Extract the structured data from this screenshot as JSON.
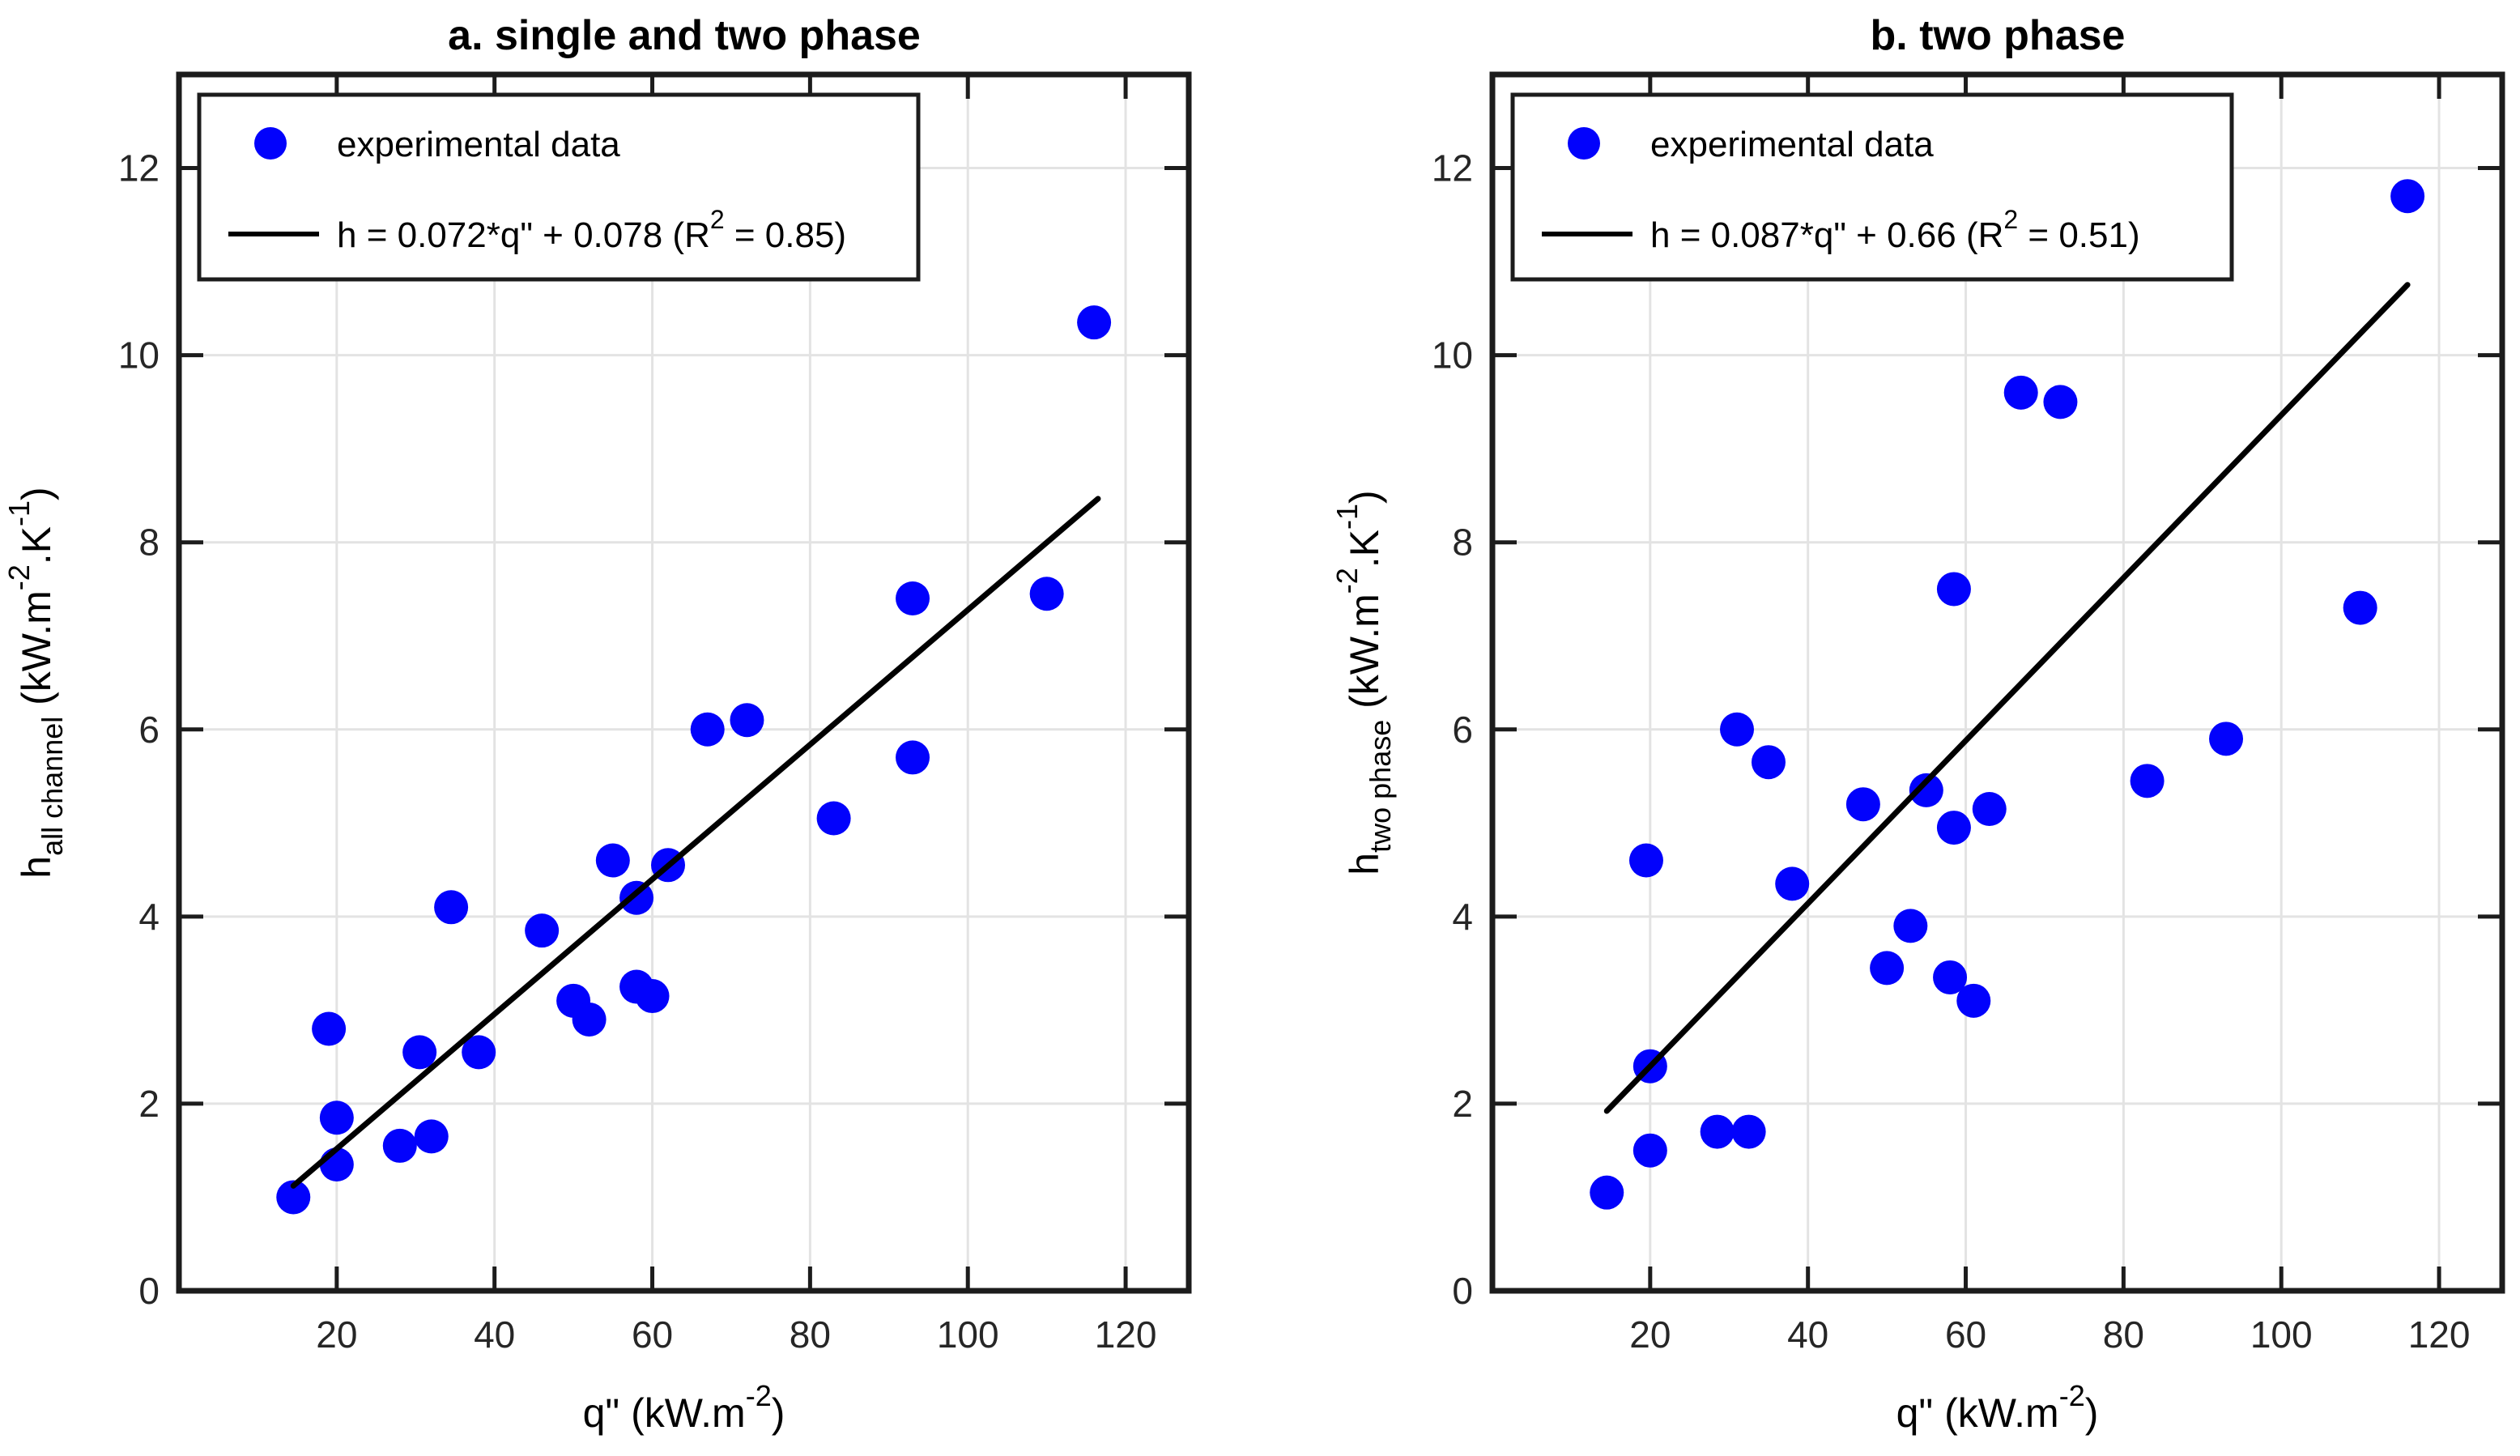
{
  "styles": {
    "background": "#FFFFFF",
    "marker_color": "#0202FC",
    "fit_line_color": "#000000",
    "grid_color": "#E3E3E3",
    "axis_color": "#1C1C1C",
    "tick_label_color": "#262626",
    "legend_border_color": "#1C1C1C",
    "legend_background": "#FFFFFF"
  },
  "chart_data": [
    {
      "type": "scatter",
      "panel": "a",
      "title": "a. single and two phase",
      "xlim": [
        0,
        128
      ],
      "ylim": [
        0,
        13
      ],
      "xticks": [
        20,
        40,
        60,
        80,
        100,
        120
      ],
      "yticks": [
        0,
        2,
        4,
        6,
        8,
        10,
        12
      ],
      "grid": true,
      "legend_position": "top-left",
      "xlabel_parts": [
        {
          "t": "q\" (kW.m"
        },
        {
          "t": "-2",
          "s": "sup"
        },
        {
          "t": ")"
        }
      ],
      "ylabel_parts": [
        {
          "t": "h"
        },
        {
          "t": "all channel",
          "s": "sub"
        },
        {
          "t": " (kW.m"
        },
        {
          "t": "-2",
          "s": "sup"
        },
        {
          "t": ".K"
        },
        {
          "t": "-1",
          "s": "sup"
        },
        {
          "t": ")"
        }
      ],
      "legend": [
        {
          "swatch": "dot",
          "parts": [
            {
              "t": "experimental data"
            }
          ]
        },
        {
          "swatch": "line",
          "parts": [
            {
              "t": "h = 0.072*q\" + 0.078 (R"
            },
            {
              "t": "2",
              "s": "sup"
            },
            {
              "t": " = 0.85)"
            }
          ]
        }
      ],
      "fit": {
        "equation": "h = 0.072*q\" + 0.078",
        "slope": 0.072,
        "intercept": 0.078,
        "r2": 0.85,
        "x_start": 14.5,
        "x_end": 116.5
      },
      "points": [
        [
          14.5,
          1.0
        ],
        [
          20,
          1.35
        ],
        [
          20,
          1.85
        ],
        [
          19,
          2.8
        ],
        [
          28,
          1.55
        ],
        [
          30.5,
          2.55
        ],
        [
          32,
          1.65
        ],
        [
          34.5,
          4.1
        ],
        [
          38,
          2.55
        ],
        [
          46,
          3.85
        ],
        [
          50,
          3.1
        ],
        [
          52,
          2.9
        ],
        [
          55,
          4.6
        ],
        [
          58,
          4.2
        ],
        [
          58,
          3.25
        ],
        [
          60,
          3.15
        ],
        [
          62,
          4.55
        ],
        [
          67,
          6.0
        ],
        [
          72,
          6.1
        ],
        [
          83,
          5.05
        ],
        [
          93,
          7.4
        ],
        [
          93,
          5.7
        ],
        [
          110,
          7.45
        ],
        [
          116,
          10.35
        ]
      ]
    },
    {
      "type": "scatter",
      "panel": "b",
      "title": "b. two phase",
      "xlim": [
        0,
        128
      ],
      "ylim": [
        0,
        13
      ],
      "xticks": [
        20,
        40,
        60,
        80,
        100,
        120
      ],
      "yticks": [
        0,
        2,
        4,
        6,
        8,
        10,
        12
      ],
      "grid": true,
      "legend_position": "top-left",
      "xlabel_parts": [
        {
          "t": "q\" (kW.m"
        },
        {
          "t": "-2",
          "s": "sup"
        },
        {
          "t": ")"
        }
      ],
      "ylabel_parts": [
        {
          "t": "h"
        },
        {
          "t": "two phase",
          "s": "sub"
        },
        {
          "t": " (kW.m"
        },
        {
          "t": "-2",
          "s": "sup"
        },
        {
          "t": ".K"
        },
        {
          "t": "-1",
          "s": "sup"
        },
        {
          "t": ")"
        }
      ],
      "legend": [
        {
          "swatch": "dot",
          "parts": [
            {
              "t": "experimental data"
            }
          ]
        },
        {
          "swatch": "line",
          "parts": [
            {
              "t": "h = 0.087*q\" + 0.66 (R"
            },
            {
              "t": "2",
              "s": "sup"
            },
            {
              "t": " = 0.51)"
            }
          ]
        }
      ],
      "fit": {
        "equation": "h = 0.087*q\" + 0.66",
        "slope": 0.087,
        "intercept": 0.66,
        "r2": 0.51,
        "x_start": 14.5,
        "x_end": 116
      },
      "points": [
        [
          14.5,
          1.05
        ],
        [
          20,
          1.5
        ],
        [
          20,
          2.4
        ],
        [
          19.5,
          4.6
        ],
        [
          28.5,
          1.7
        ],
        [
          32.5,
          1.7
        ],
        [
          31,
          6.0
        ],
        [
          35,
          5.65
        ],
        [
          38,
          4.35
        ],
        [
          47,
          5.2
        ],
        [
          50,
          3.45
        ],
        [
          53,
          3.9
        ],
        [
          55,
          5.35
        ],
        [
          58.5,
          4.95
        ],
        [
          58.5,
          7.5
        ],
        [
          58,
          3.35
        ],
        [
          61,
          3.1
        ],
        [
          63,
          5.15
        ],
        [
          67,
          9.6
        ],
        [
          72,
          9.5
        ],
        [
          83,
          5.45
        ],
        [
          93,
          5.9
        ],
        [
          110,
          7.3
        ],
        [
          116,
          11.7
        ]
      ]
    }
  ]
}
